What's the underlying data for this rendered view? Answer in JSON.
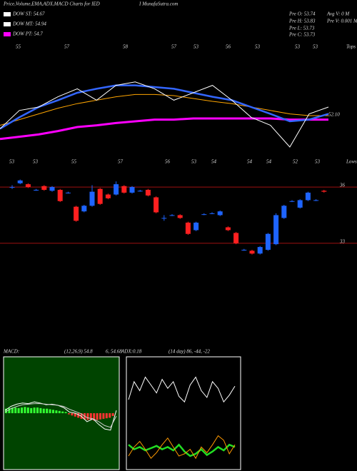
{
  "header": {
    "title": "Price,Volume,EMA,ADX,MACD Charts for IED",
    "site": "I MunafaSutra.com"
  },
  "legend": [
    {
      "label": "DOW ST: 54.67",
      "color": "#ffffff"
    },
    {
      "label": "DOW MT: 54.94",
      "color": "#ffffff"
    },
    {
      "label": "DOW PT: 54.7",
      "color": "#ff00ff"
    }
  ],
  "stats": [
    "Pre  O: 53.74",
    "Pre  H: 53.83",
    "Pre  L: 53.73",
    "Pre  C: 53.73",
    "Avg V: 0  M",
    "Pre  V: 0.001 M"
  ],
  "chart_data": [
    {
      "type": "line",
      "tops_label": "Tops",
      "lows_label": "Lows",
      "tops": [
        "55",
        "57",
        "58",
        "57",
        "53",
        "56",
        "53",
        "53",
        "53"
      ],
      "lows": [
        "53",
        "53",
        "55",
        "57",
        "56",
        "53",
        "54",
        "54",
        "54",
        "52",
        "53"
      ],
      "annotation": "52.10",
      "ylim": [
        48,
        58
      ],
      "series": [
        {
          "color": "#ffa500",
          "values": [
            51.4,
            51.9,
            52.4,
            52.9,
            53.3,
            53.6,
            53.9,
            54.1,
            54.1,
            54.0,
            53.75,
            53.5,
            53.3,
            53.0,
            52.7,
            52.4,
            52.25,
            52.25
          ]
        },
        {
          "color": "#ff00ff",
          "values": [
            50.2,
            50.4,
            50.6,
            50.9,
            51.25,
            51.4,
            51.6,
            51.75,
            51.9,
            51.9,
            52.0,
            52.0,
            52.0,
            52.0,
            52.0,
            51.9,
            51.9,
            51.9
          ]
        },
        {
          "color": "#3366ff",
          "values": [
            51.1,
            52.1,
            53.0,
            53.6,
            54.25,
            54.6,
            54.9,
            54.9,
            54.75,
            54.6,
            54.25,
            53.9,
            53.6,
            53.0,
            52.4,
            51.75,
            51.9,
            52.4
          ]
        },
        {
          "color": "#ffffff",
          "values": [
            51.1,
            52.7,
            53.0,
            53.9,
            54.6,
            53.6,
            54.9,
            55.2,
            54.6,
            53.6,
            54.25,
            54.9,
            53.6,
            52.1,
            51.4,
            49.5,
            52.4,
            53.0
          ]
        }
      ]
    },
    {
      "type": "candlestick",
      "ylim": [
        31.7,
        36.65
      ],
      "yticks": [
        36,
        33
      ],
      "up_color": "#1e64ff",
      "down_color": "#ff2020",
      "open": [
        36.0,
        36.2,
        36.15,
        35.85,
        36.05,
        35.8,
        35.85,
        35.7,
        34.95,
        34.7,
        35.0,
        35.9,
        35.6,
        35.6,
        36.05,
        35.7,
        35.8,
        35.85,
        35.45,
        34.35,
        34.5,
        34.5,
        34.1,
        33.7,
        34.55,
        34.6,
        34.5,
        33.85,
        33.55,
        32.65,
        32.6,
        32.45,
        32.65,
        32.95,
        34.35,
        35.25,
        34.9,
        35.3,
        35.3,
        35.8
      ],
      "high": [
        36.1,
        36.4,
        36.2,
        35.9,
        36.1,
        36.05,
        35.9,
        35.75,
        35.0,
        35.05,
        36.1,
        35.95,
        35.65,
        36.3,
        36.1,
        36.05,
        35.85,
        35.9,
        35.5,
        34.5,
        34.55,
        34.55,
        34.15,
        34.15,
        34.6,
        34.65,
        34.75,
        33.9,
        33.6,
        32.7,
        32.65,
        32.85,
        33.55,
        34.6,
        35.05,
        35.3,
        35.35,
        35.75,
        35.35,
        35.85
      ],
      "low": [
        35.9,
        36.15,
        35.95,
        35.8,
        35.8,
        35.75,
        35.2,
        35.65,
        34.15,
        34.65,
        34.95,
        35.05,
        35.35,
        35.55,
        35.65,
        35.65,
        35.75,
        35.5,
        34.6,
        34.2,
        34.45,
        34.3,
        33.45,
        33.65,
        34.5,
        34.55,
        34.45,
        33.65,
        32.95,
        32.6,
        32.4,
        32.4,
        32.6,
        32.9,
        34.3,
        35.2,
        34.85,
        35.25,
        35.25,
        35.7
      ],
      "close": [
        36.0,
        36.35,
        36.0,
        35.85,
        35.85,
        36.0,
        35.25,
        35.7,
        34.2,
        35.0,
        35.75,
        35.1,
        35.4,
        36.15,
        35.7,
        36.0,
        35.8,
        35.55,
        34.65,
        34.35,
        34.5,
        34.35,
        33.5,
        34.1,
        34.55,
        34.6,
        34.7,
        33.7,
        33.0,
        32.65,
        32.45,
        32.8,
        33.5,
        34.5,
        35.0,
        35.25,
        35.3,
        35.7,
        35.3,
        35.75
      ]
    },
    {
      "type": "macd",
      "title": "MACD:",
      "params": "(12,26,9) 54.8",
      "values_text": "6, 54.68",
      "last": "0.18",
      "ylim": [
        -1,
        1
      ],
      "color": "#004400",
      "histogram": [
        0.08,
        0.09,
        0.1,
        0.1,
        0.09,
        0.1,
        0.11,
        0.1,
        0.09,
        0.1,
        0.1,
        0.09,
        0.08,
        0.08,
        0.07,
        0.06,
        0.05,
        0.04,
        0.03,
        0.02,
        -0.02,
        -0.04,
        -0.06,
        -0.08,
        -0.1,
        -0.11,
        -0.12,
        -0.12,
        -0.13,
        -0.12,
        -0.11,
        -0.1,
        -0.09,
        -0.08,
        -0.05
      ],
      "series": [
        {
          "color": "#ffffff",
          "values": [
            0.05,
            0.12,
            0.16,
            0.18,
            0.17,
            0.2,
            0.18,
            0.15,
            0.16,
            0.14,
            0.1,
            0.02,
            0.0,
            -0.05,
            -0.15,
            -0.1,
            -0.2,
            -0.28,
            -0.3,
            0.05
          ]
        },
        {
          "color": "#cccccc",
          "values": [
            0.02,
            0.08,
            0.12,
            0.15,
            0.16,
            0.17,
            0.17,
            0.16,
            0.15,
            0.14,
            0.12,
            0.07,
            0.03,
            -0.01,
            -0.08,
            -0.1,
            -0.15,
            -0.22,
            -0.25,
            -0.05
          ]
        }
      ]
    },
    {
      "type": "adx",
      "title": "ADX:",
      "params": "(14 day) 86, -44, -22",
      "ylim": [
        0,
        100
      ],
      "series": [
        {
          "color": "#ffffff",
          "values": [
            62,
            78,
            70,
            82,
            75,
            68,
            80,
            72,
            78,
            65,
            60,
            75,
            82,
            70,
            64,
            78,
            72,
            60,
            66,
            74
          ]
        },
        {
          "color": "#22dd22",
          "values": [
            22,
            18,
            20,
            17,
            19,
            21,
            18,
            20,
            17,
            22,
            16,
            12,
            14,
            18,
            13,
            16,
            20,
            17,
            22,
            20
          ]
        },
        {
          "color": "#ff9900",
          "values": [
            12,
            20,
            25,
            18,
            10,
            15,
            22,
            28,
            20,
            12,
            14,
            18,
            10,
            20,
            15,
            22,
            30,
            26,
            14,
            22
          ]
        }
      ]
    }
  ]
}
